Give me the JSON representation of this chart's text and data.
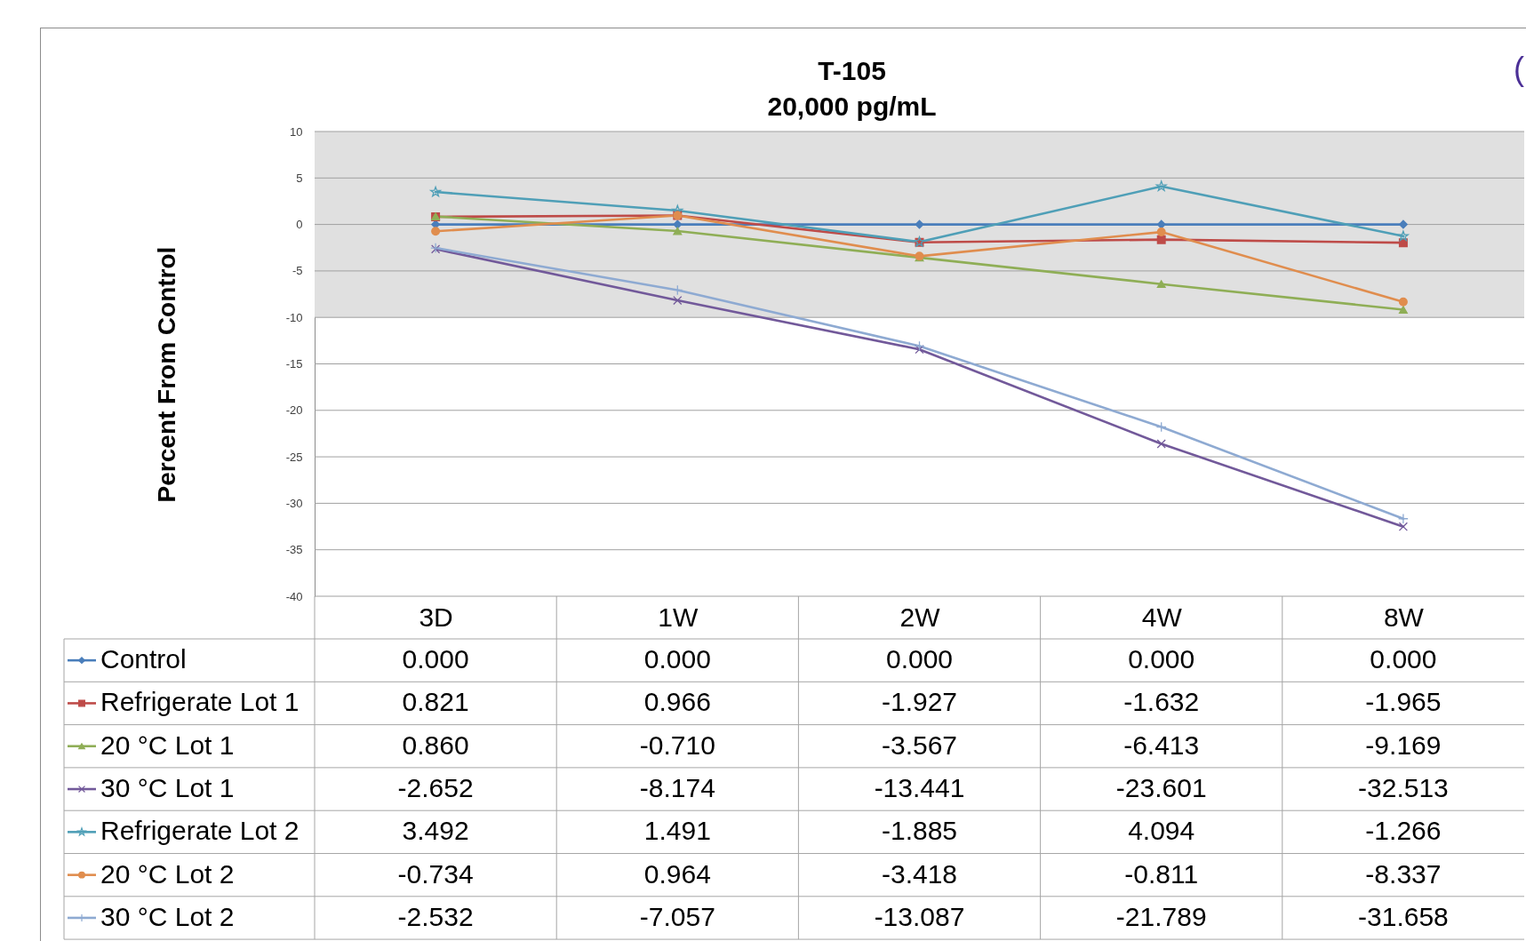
{
  "chart_data": {
    "type": "line",
    "title": "T-105",
    "subtitle": "20,000 pg/mL",
    "ylabel": "Percent From Control",
    "categories": [
      "3D",
      "1W",
      "2W",
      "4W",
      "8W"
    ],
    "series": [
      {
        "name": "Control",
        "color": "#4a7ebb",
        "marker": "diamond",
        "values": [
          0,
          0,
          0,
          0,
          0
        ],
        "value_labels": [
          "0.000",
          "0.000",
          "0.000",
          "0.000",
          "0.000"
        ]
      },
      {
        "name": "Refrigerate Lot 1",
        "color": "#be4b48",
        "marker": "square",
        "values": [
          0.821,
          0.966,
          -1.927,
          -1.632,
          -1.965
        ],
        "value_labels": [
          "0.821",
          "0.966",
          "-1.927",
          "-1.632",
          "-1.965"
        ]
      },
      {
        "name": "20 °C Lot 1",
        "color": "#8fae56",
        "marker": "triangle",
        "values": [
          0.86,
          -0.71,
          -3.567,
          -6.413,
          -9.169
        ],
        "value_labels": [
          "0.860",
          "-0.710",
          "-3.567",
          "-6.413",
          "-9.169"
        ]
      },
      {
        "name": "30 °C Lot 1",
        "color": "#72599a",
        "marker": "cross",
        "values": [
          -2.652,
          -8.174,
          -13.441,
          -23.601,
          -32.513
        ],
        "value_labels": [
          "-2.652",
          "-8.174",
          "-13.441",
          "-23.601",
          "-32.513"
        ]
      },
      {
        "name": "Refrigerate Lot 2",
        "color": "#4f9fb7",
        "marker": "star",
        "values": [
          3.492,
          1.491,
          -1.885,
          4.094,
          -1.266
        ],
        "value_labels": [
          "3.492",
          "1.491",
          "-1.885",
          "4.094",
          "-1.266"
        ]
      },
      {
        "name": "20 °C Lot 2",
        "color": "#e08d4e",
        "marker": "circle",
        "values": [
          -0.734,
          0.964,
          -3.418,
          -0.811,
          -8.337
        ],
        "value_labels": [
          "-0.734",
          "0.964",
          "-3.418",
          "-0.811",
          "-8.337"
        ]
      },
      {
        "name": "30 °C Lot 2",
        "color": "#8eaad2",
        "marker": "plus",
        "values": [
          -2.532,
          -7.057,
          -13.087,
          -21.789,
          -31.658
        ],
        "value_labels": [
          "-2.532",
          "-7.057",
          "-13.087",
          "-21.789",
          "-31.658"
        ]
      }
    ],
    "ylim": [
      -40,
      10
    ],
    "yticks": [
      -40,
      -35,
      -30,
      -25,
      -20,
      -15,
      -10,
      -5,
      0,
      5,
      10
    ],
    "grid": "y",
    "legend": "bottom left",
    "bands": [
      {
        "axis": "y",
        "from": -10,
        "to": 10,
        "color": "#e0e0e0"
      }
    ],
    "annotations": [
      "("
    ]
  }
}
